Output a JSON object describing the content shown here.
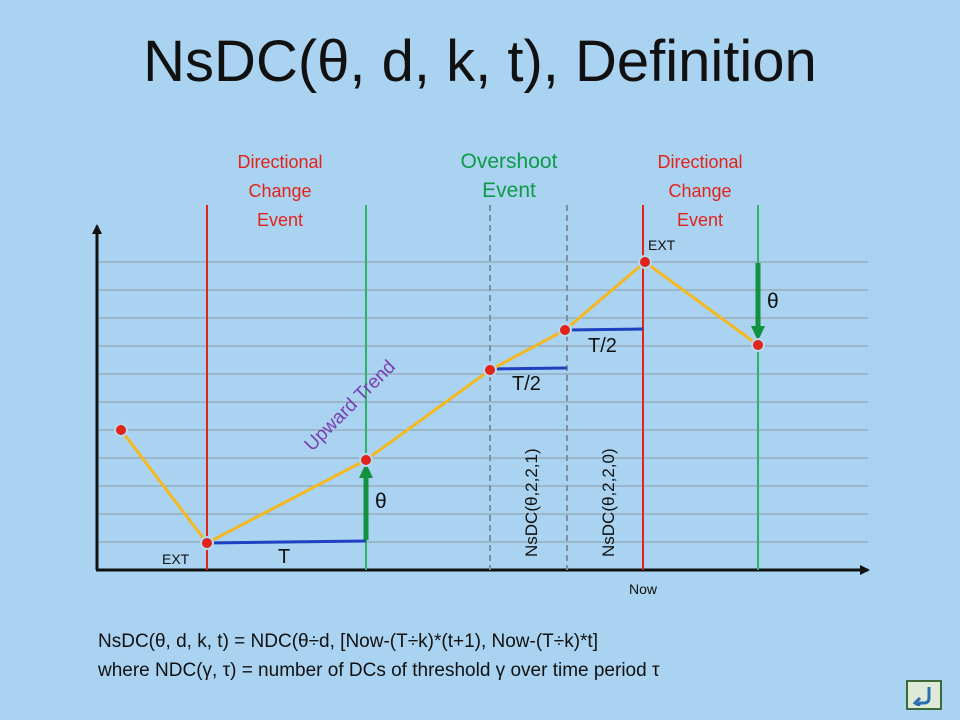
{
  "title": "NsDC(θ, d, k, t), Definition",
  "colors": {
    "background": "#a9d3f0",
    "red_line": "#e2231a",
    "green_line": "#2fb36a",
    "dashed_line": "#7f8f9f",
    "price_path": "#f5b820",
    "point": "#e2231a",
    "threshold_segment": "#1f3fc0",
    "theta_arrow": "#12913f",
    "trend_label": "#7a3fb0"
  },
  "events": {
    "dc_left": [
      "Directional",
      "Change",
      "Event"
    ],
    "overshoot": [
      "Overshoot",
      "Event"
    ],
    "dc_right": [
      "Directional",
      "Change",
      "Event"
    ]
  },
  "labels": {
    "ext_left": "EXT",
    "ext_top": "EXT",
    "t": "T",
    "t_half_1": "T/2",
    "t_half_2": "T/2",
    "theta_up": "θ",
    "theta_down": "θ",
    "upward_trend": "Upward Trend",
    "nsdc_1": "NsDC(θ,2,2,1)",
    "nsdc_0": "NsDC(θ,2,2,0)",
    "now": "Now"
  },
  "formula": {
    "line1": "NsDC(θ, d, k, t) = NDC(θ÷d, [Now-(T÷k)*(t+1), Now-(T÷k)*t]",
    "line2": "where NDC(γ, τ) = number of DCs of threshold γ over time period τ"
  },
  "icons": {
    "return_button": "return-arrow-icon"
  }
}
